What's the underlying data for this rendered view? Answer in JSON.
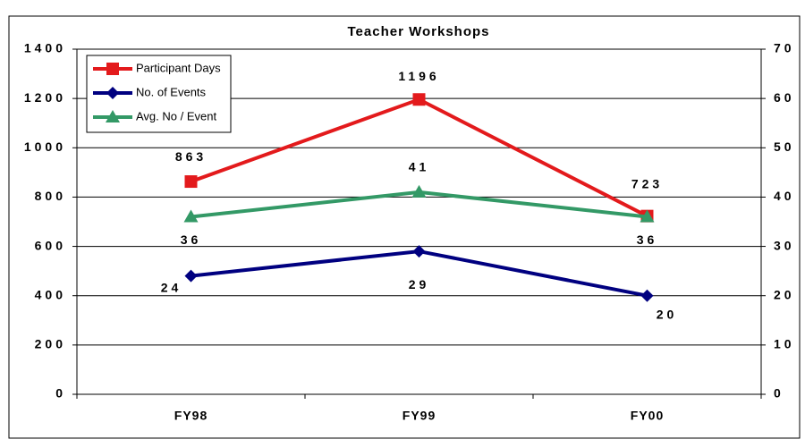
{
  "chart_data": {
    "type": "line",
    "title": "Teacher Workshops",
    "categories": [
      "FY98",
      "FY99",
      "FY00"
    ],
    "series": [
      {
        "name": "Participant Days",
        "color": "#e31a1c",
        "marker": "square",
        "values": [
          863,
          1196,
          723
        ]
      },
      {
        "name": "No. of Events",
        "color": "#000080",
        "marker": "diamond",
        "axis": "y2",
        "values": [
          24,
          29,
          20
        ]
      },
      {
        "name": "Avg. No / Event",
        "color": "#339966",
        "marker": "triangle",
        "axis": "y2",
        "values": [
          36,
          41,
          36
        ]
      }
    ],
    "ylim": [
      0,
      1400
    ],
    "yticks": [
      0,
      200,
      400,
      600,
      800,
      1000,
      1200,
      1400
    ],
    "y2lim": [
      0,
      70
    ],
    "y2ticks": [
      0,
      10,
      20,
      30,
      40,
      50,
      60,
      70
    ],
    "grid": true,
    "legend": "top-left"
  }
}
